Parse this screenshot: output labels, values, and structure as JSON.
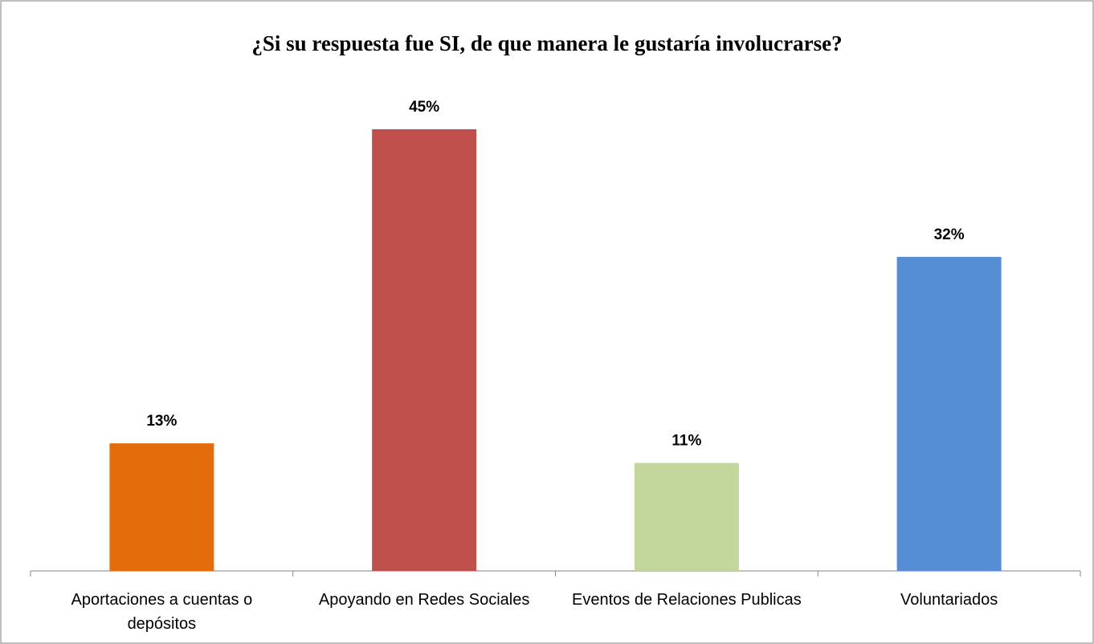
{
  "chart_data": {
    "type": "bar",
    "title": "¿Si su respuesta fue SI, de que manera le gustaría involucrarse?",
    "categories": [
      "Aportaciones a cuentas o depósitos",
      "Apoyando en Redes Sociales",
      "Eventos de Relaciones Publicas",
      "Voluntariados"
    ],
    "values": [
      13,
      45,
      11,
      32
    ],
    "value_labels": [
      "13%",
      "45%",
      "11%",
      "32%"
    ],
    "colors": [
      "#e46c0a",
      "#c0504d",
      "#c3d69b",
      "#558ed5"
    ]
  }
}
